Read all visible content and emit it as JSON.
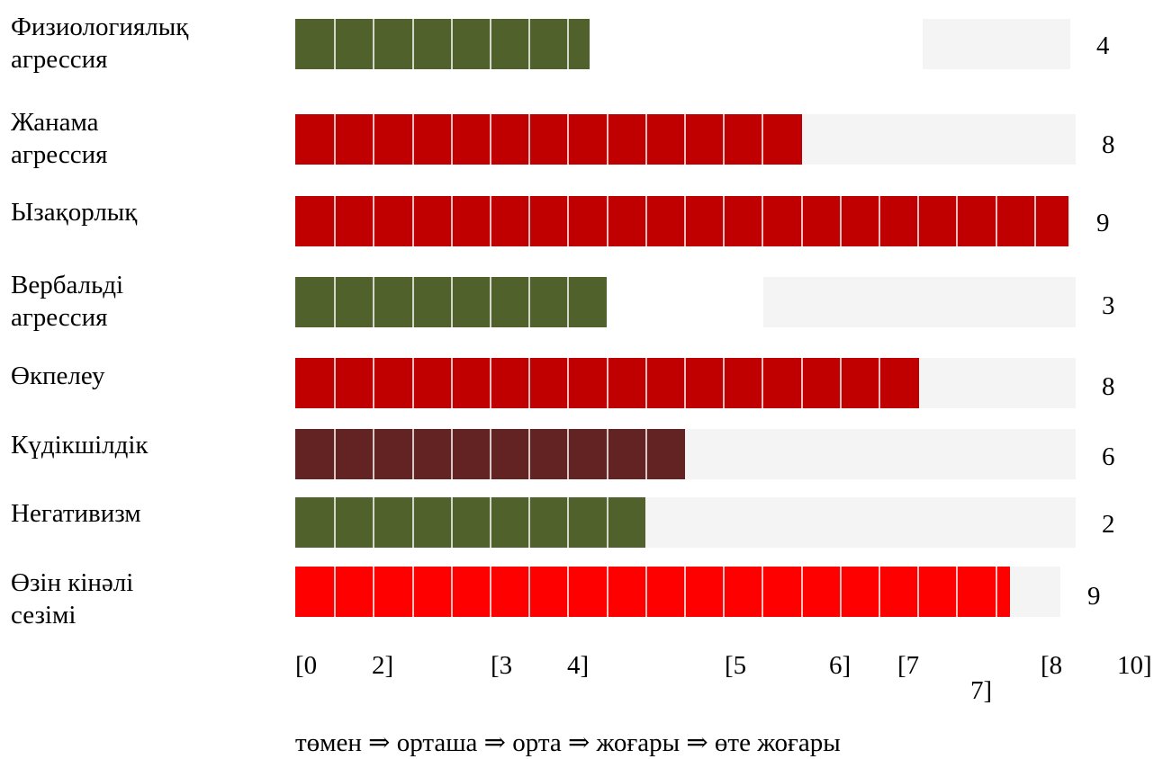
{
  "chart_data": {
    "type": "bar",
    "orientation": "horizontal",
    "categories": [
      "Физиологиялық агрессия",
      "Жанама агрессия",
      "Ызақорлық",
      "Вербальді агрессия",
      "Өкпелеу",
      "Күдікшілдік",
      "Негативизм",
      "Өзін кінәлі сезімі"
    ],
    "values": [
      4,
      8,
      9,
      3,
      8,
      6,
      2,
      9
    ],
    "bar_colors": [
      "#50612b",
      "#c00000",
      "#c00000",
      "#50612b",
      "#c00000",
      "#632323",
      "#50612b",
      "#ff0000"
    ],
    "track_color": "#f4f4f4",
    "legend_color_meaning": {
      "#50612b": "low",
      "#632323": "medium",
      "#c00000": "high",
      "#ff0000": "very high"
    },
    "x_tick_labels": [
      "[0",
      "2]",
      "[3",
      "4]",
      "[5",
      "6]",
      "[7",
      "7]",
      "[8",
      "10]"
    ],
    "scale_caption": "төмен ⇒ орташа ⇒ орта ⇒ жоғары ⇒ өте жоғары",
    "xlim": [
      0,
      10
    ],
    "grid": false
  }
}
